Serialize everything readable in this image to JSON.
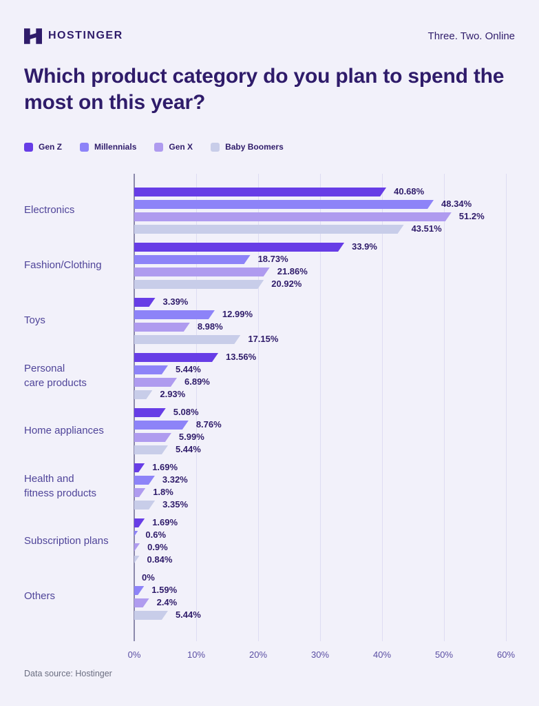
{
  "header": {
    "brand": "HOSTINGER",
    "tagline": "Three. Two. Online"
  },
  "title": "Which product category do you plan to spend the most on this year?",
  "footer": {
    "source": "Data source: Hostinger"
  },
  "colors": {
    "background": "#F2F1FA",
    "title_text": "#2F1C6A",
    "category_label": "#4F4499",
    "value_label": "#2F1C6A",
    "axis_tick": "#5A4EA3",
    "gridline": "#DEDCF2",
    "axis_line": "#8B89AB",
    "footer_text": "#6A6D80"
  },
  "legend": {
    "items": [
      {
        "label": "Gen Z",
        "color": "#673DE6"
      },
      {
        "label": "Millennials",
        "color": "#8D83F8"
      },
      {
        "label": "Gen X",
        "color": "#AF9BEF"
      },
      {
        "label": "Baby Boomers",
        "color": "#C8CDE9"
      }
    ]
  },
  "chart_data": {
    "type": "bar",
    "orientation": "horizontal",
    "title": "Which product category do you plan to spend the most on this year?",
    "categories": [
      "Electronics",
      "Fashion/Clothing",
      "Toys",
      "Personal care products",
      "Home appliances",
      "Health and fitness products",
      "Subscription plans",
      "Others"
    ],
    "categories_display": [
      "Electronics",
      "Fashion/Clothing",
      "Toys",
      "Personal\ncare products",
      "Home appliances",
      "Health and\nfitness products",
      "Subscription plans",
      "Others"
    ],
    "series": [
      {
        "name": "Gen Z",
        "color": "#673DE6",
        "values": [
          40.68,
          33.9,
          3.39,
          13.56,
          5.08,
          1.69,
          1.69,
          0
        ]
      },
      {
        "name": "Millennials",
        "color": "#8D83F8",
        "values": [
          48.34,
          18.73,
          12.99,
          5.44,
          8.76,
          3.32,
          0.6,
          1.59
        ]
      },
      {
        "name": "Gen X",
        "color": "#AF9BEF",
        "values": [
          51.2,
          21.86,
          8.98,
          6.89,
          5.99,
          1.8,
          0.9,
          2.4
        ]
      },
      {
        "name": "Baby Boomers",
        "color": "#C8CDE9",
        "values": [
          43.51,
          20.92,
          17.15,
          2.93,
          5.44,
          3.35,
          0.84,
          5.44
        ]
      }
    ],
    "value_suffix": "%",
    "xlim": [
      0,
      60
    ],
    "x_ticks": [
      "0%",
      "10%",
      "20%",
      "30%",
      "40%",
      "50%",
      "60%"
    ],
    "legend_position": "top",
    "grid": "vertical",
    "data_source": "Data source: Hostinger"
  }
}
